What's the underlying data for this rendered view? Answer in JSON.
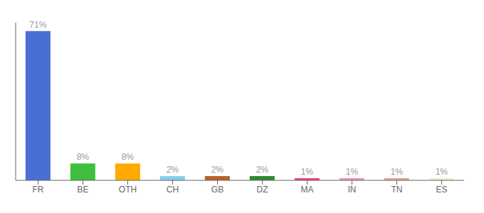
{
  "chart_data": {
    "type": "bar",
    "categories": [
      "FR",
      "BE",
      "OTH",
      "CH",
      "GB",
      "DZ",
      "MA",
      "IN",
      "TN",
      "ES"
    ],
    "values": [
      71,
      8,
      8,
      2,
      2,
      2,
      1,
      1,
      1,
      1
    ],
    "value_labels": [
      "71%",
      "8%",
      "8%",
      "2%",
      "2%",
      "2%",
      "1%",
      "1%",
      "1%",
      "1%"
    ],
    "colors": [
      "#4A6FD4",
      "#3DBF3D",
      "#FFAA00",
      "#87CEEB",
      "#B8622A",
      "#2E8B2E",
      "#E8427A",
      "#F48FB1",
      "#E8A090",
      "#F0ECC0"
    ],
    "ylim": [
      0,
      75
    ],
    "data_labels": true,
    "tick_labels": "x",
    "grid": false
  }
}
